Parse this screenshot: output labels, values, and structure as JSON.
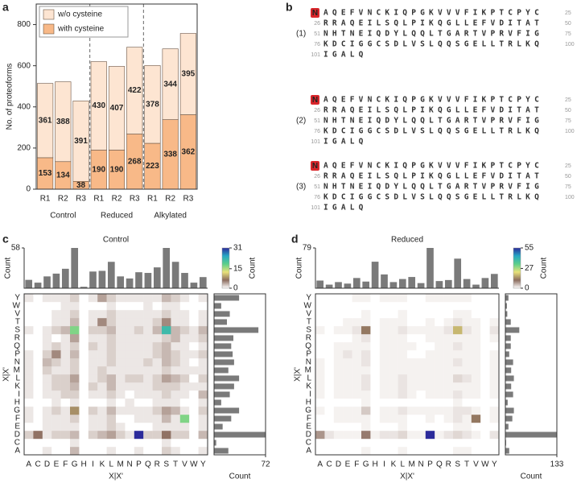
{
  "panel_labels": [
    "a",
    "b",
    "c",
    "d"
  ],
  "chart_data": [
    {
      "type": "bar",
      "stacked": true,
      "ylabel": "No. of proteoforms",
      "categories": [
        "R1",
        "R2",
        "R3",
        "R1",
        "R2",
        "R3",
        "R1",
        "R2",
        "R3"
      ],
      "groups": [
        "Control",
        "Reduced",
        "Alkylated"
      ],
      "series": [
        {
          "name": "with cysteine",
          "color": "#f8b988",
          "values": [
            153,
            134,
            38,
            190,
            190,
            268,
            223,
            338,
            362
          ]
        },
        {
          "name": "w/o cysteine",
          "color": "#fde5d2",
          "values": [
            361,
            388,
            391,
            430,
            407,
            422,
            378,
            344,
            395
          ]
        }
      ],
      "ylim": [
        0,
        900
      ],
      "yticks": [
        0,
        200,
        400,
        600,
        800
      ],
      "legend": "top-left"
    },
    {
      "type": "heatmap",
      "title": "Control",
      "xlabel": "X|X'",
      "ylabel": "X|X'",
      "x_categories": [
        "A",
        "C",
        "D",
        "E",
        "F",
        "G",
        "H",
        "I",
        "K",
        "L",
        "M",
        "N",
        "P",
        "Q",
        "R",
        "S",
        "T",
        "V",
        "W",
        "Y"
      ],
      "y_categories": [
        "A",
        "C",
        "D",
        "E",
        "F",
        "G",
        "H",
        "I",
        "K",
        "L",
        "M",
        "N",
        "P",
        "Q",
        "R",
        "S",
        "T",
        "V",
        "W",
        "Y"
      ],
      "matrix": [
        [
          0,
          0,
          1,
          0,
          0,
          3,
          0,
          0,
          0,
          1,
          0,
          0,
          1,
          0,
          0,
          2,
          1,
          0,
          0,
          1
        ],
        [
          0,
          0,
          0,
          0,
          0,
          1,
          0,
          0,
          0,
          0,
          0,
          0,
          0,
          0,
          0,
          1,
          0,
          0,
          0,
          0
        ],
        [
          2,
          6,
          1,
          2,
          2,
          3,
          0,
          2,
          3,
          4,
          2,
          1,
          31,
          2,
          2,
          6,
          2,
          2,
          0,
          3
        ],
        [
          0,
          0,
          1,
          1,
          1,
          1,
          0,
          1,
          1,
          2,
          1,
          0,
          0,
          0,
          1,
          1,
          1,
          1,
          0,
          1
        ],
        [
          1,
          0,
          1,
          1,
          1,
          2,
          0,
          1,
          1,
          2,
          0,
          0,
          1,
          1,
          1,
          3,
          1,
          17,
          0,
          1
        ],
        [
          1,
          0,
          1,
          2,
          1,
          8,
          0,
          2,
          1,
          3,
          1,
          1,
          1,
          1,
          2,
          4,
          3,
          1,
          0,
          2
        ],
        [
          0,
          0,
          0,
          1,
          0,
          1,
          0,
          0,
          0,
          1,
          0,
          1,
          0,
          0,
          1,
          1,
          1,
          0,
          0,
          1
        ],
        [
          1,
          0,
          1,
          1,
          2,
          2,
          0,
          1,
          1,
          2,
          1,
          0,
          1,
          1,
          1,
          2,
          1,
          1,
          0,
          3
        ],
        [
          1,
          0,
          1,
          2,
          2,
          3,
          0,
          2,
          1,
          3,
          1,
          1,
          1,
          1,
          2,
          2,
          2,
          1,
          1,
          1
        ],
        [
          1,
          0,
          1,
          2,
          2,
          4,
          0,
          1,
          2,
          3,
          1,
          2,
          2,
          1,
          2,
          4,
          3,
          2,
          0,
          2
        ],
        [
          1,
          0,
          2,
          1,
          1,
          2,
          0,
          1,
          2,
          1,
          1,
          1,
          1,
          1,
          1,
          2,
          1,
          1,
          1,
          1
        ],
        [
          1,
          0,
          3,
          2,
          1,
          2,
          0,
          1,
          1,
          2,
          1,
          1,
          1,
          2,
          1,
          3,
          2,
          1,
          0,
          1
        ],
        [
          1,
          0,
          2,
          5,
          1,
          3,
          0,
          1,
          1,
          2,
          1,
          1,
          1,
          1,
          2,
          3,
          2,
          1,
          1,
          2
        ],
        [
          0,
          0,
          1,
          2,
          1,
          2,
          0,
          2,
          1,
          2,
          1,
          1,
          1,
          1,
          2,
          3,
          1,
          1,
          0,
          1
        ],
        [
          0,
          0,
          1,
          0,
          1,
          4,
          0,
          1,
          1,
          2,
          1,
          1,
          1,
          1,
          1,
          2,
          3,
          1,
          1,
          2
        ],
        [
          1,
          0,
          1,
          2,
          3,
          17,
          0,
          2,
          2,
          3,
          1,
          1,
          2,
          1,
          3,
          22,
          3,
          2,
          1,
          3
        ],
        [
          0,
          0,
          0,
          1,
          1,
          3,
          0,
          1,
          5,
          2,
          1,
          1,
          1,
          1,
          2,
          5,
          1,
          1,
          0,
          1
        ],
        [
          0,
          0,
          0,
          1,
          1,
          2,
          0,
          1,
          1,
          2,
          1,
          1,
          1,
          1,
          1,
          2,
          1,
          1,
          0,
          1
        ],
        [
          0,
          0,
          0,
          0,
          1,
          1,
          0,
          0,
          0,
          1,
          0,
          0,
          0,
          1,
          0,
          1,
          1,
          0,
          0,
          0
        ],
        [
          1,
          0,
          1,
          1,
          1,
          2,
          0,
          1,
          4,
          2,
          1,
          1,
          1,
          1,
          1,
          3,
          2,
          1,
          0,
          1
        ]
      ],
      "clim": [
        0,
        31
      ],
      "cticks": [
        0,
        15,
        31
      ],
      "colorbar_label": "Count",
      "colors": [
        "#ffffff",
        "#8c6d5f",
        "#e9e27a",
        "#5ccf8a",
        "#27a8c4",
        "#2b2a9a"
      ],
      "top_bars": {
        "ylabel": "Count",
        "color": "#7a7a7a",
        "ylim": [
          0,
          58
        ],
        "yticks": [
          58
        ],
        "values": [
          12,
          8,
          17,
          21,
          28,
          58,
          2,
          24,
          25,
          38,
          17,
          14,
          23,
          22,
          30,
          58,
          38,
          22,
          8,
          16
        ]
      },
      "right_bars": {
        "xlabel": "Count",
        "color": "#7a7a7a",
        "xlim": [
          0,
          72
        ],
        "xticks": [
          72
        ],
        "values": [
          20,
          3,
          72,
          12,
          24,
          35,
          10,
          22,
          28,
          35,
          20,
          28,
          26,
          24,
          27,
          62,
          18,
          22,
          10,
          35
        ]
      }
    },
    {
      "type": "heatmap",
      "title": "Reduced",
      "xlabel": "X|X'",
      "ylabel": "X|X'",
      "x_categories": [
        "A",
        "C",
        "D",
        "E",
        "F",
        "G",
        "H",
        "I",
        "K",
        "L",
        "M",
        "N",
        "P",
        "Q",
        "R",
        "S",
        "T",
        "V",
        "W",
        "Y"
      ],
      "y_categories": [
        "A",
        "C",
        "D",
        "E",
        "F",
        "G",
        "H",
        "I",
        "K",
        "L",
        "M",
        "N",
        "P",
        "Q",
        "R",
        "S",
        "T",
        "V",
        "W",
        "Y"
      ],
      "matrix": [
        [
          0,
          0,
          0,
          0,
          0,
          1,
          0,
          0,
          0,
          1,
          0,
          0,
          0,
          0,
          0,
          1,
          1,
          0,
          0,
          0
        ],
        [
          0,
          0,
          0,
          0,
          0,
          0,
          0,
          0,
          0,
          0,
          0,
          0,
          0,
          0,
          0,
          0,
          0,
          0,
          0,
          0
        ],
        [
          8,
          2,
          1,
          1,
          1,
          10,
          1,
          2,
          2,
          3,
          1,
          1,
          55,
          1,
          2,
          3,
          2,
          1,
          0,
          2
        ],
        [
          0,
          0,
          0,
          0,
          0,
          1,
          0,
          0,
          0,
          1,
          0,
          0,
          0,
          0,
          0,
          1,
          1,
          0,
          0,
          0
        ],
        [
          0,
          0,
          1,
          1,
          1,
          1,
          0,
          1,
          1,
          1,
          0,
          0,
          1,
          0,
          1,
          2,
          1,
          12,
          0,
          1
        ],
        [
          1,
          0,
          1,
          1,
          1,
          4,
          0,
          1,
          1,
          2,
          1,
          1,
          1,
          1,
          1,
          2,
          2,
          1,
          0,
          1
        ],
        [
          0,
          0,
          0,
          0,
          0,
          1,
          0,
          0,
          0,
          0,
          0,
          0,
          0,
          0,
          0,
          1,
          0,
          0,
          0,
          0
        ],
        [
          1,
          0,
          1,
          1,
          1,
          1,
          0,
          1,
          1,
          2,
          1,
          0,
          1,
          1,
          1,
          2,
          1,
          1,
          0,
          1
        ],
        [
          1,
          0,
          1,
          1,
          1,
          2,
          0,
          1,
          1,
          2,
          1,
          1,
          1,
          1,
          1,
          1,
          1,
          1,
          0,
          1
        ],
        [
          1,
          0,
          1,
          1,
          1,
          2,
          0,
          1,
          1,
          2,
          1,
          1,
          1,
          1,
          1,
          3,
          2,
          1,
          0,
          1
        ],
        [
          1,
          0,
          1,
          1,
          1,
          1,
          0,
          1,
          1,
          1,
          1,
          1,
          1,
          1,
          1,
          1,
          1,
          1,
          0,
          1
        ],
        [
          1,
          0,
          1,
          1,
          1,
          2,
          0,
          1,
          1,
          1,
          1,
          1,
          1,
          1,
          1,
          2,
          1,
          1,
          0,
          1
        ],
        [
          0,
          0,
          1,
          2,
          1,
          2,
          0,
          1,
          1,
          1,
          0,
          0,
          1,
          1,
          1,
          1,
          1,
          1,
          0,
          1
        ],
        [
          0,
          0,
          1,
          1,
          1,
          1,
          0,
          1,
          1,
          1,
          1,
          0,
          0,
          1,
          1,
          2,
          1,
          1,
          0,
          0
        ],
        [
          0,
          0,
          0,
          0,
          1,
          2,
          0,
          1,
          1,
          1,
          0,
          0,
          1,
          1,
          1,
          1,
          1,
          1,
          0,
          1
        ],
        [
          1,
          0,
          1,
          1,
          2,
          12,
          0,
          1,
          1,
          2,
          1,
          1,
          1,
          1,
          2,
          18,
          2,
          1,
          0,
          2
        ],
        [
          0,
          0,
          0,
          1,
          1,
          1,
          0,
          1,
          1,
          1,
          0,
          0,
          1,
          0,
          1,
          2,
          1,
          1,
          0,
          1
        ],
        [
          0,
          0,
          0,
          0,
          0,
          1,
          0,
          0,
          0,
          1,
          0,
          0,
          0,
          0,
          0,
          1,
          1,
          0,
          0,
          0
        ],
        [
          0,
          0,
          0,
          0,
          0,
          0,
          0,
          0,
          0,
          0,
          0,
          0,
          0,
          0,
          0,
          0,
          0,
          0,
          0,
          0
        ],
        [
          0,
          0,
          0,
          0,
          1,
          1,
          0,
          1,
          1,
          1,
          0,
          0,
          1,
          1,
          1,
          1,
          1,
          0,
          0,
          0
        ]
      ],
      "clim": [
        0,
        55
      ],
      "cticks": [
        0,
        27,
        55
      ],
      "colorbar_label": "Count",
      "colors": [
        "#ffffff",
        "#8c6d5f",
        "#e9e27a",
        "#5ccf8a",
        "#27a8c4",
        "#2b2a9a"
      ],
      "top_bars": {
        "ylabel": "Count",
        "color": "#7a7a7a",
        "ylim": [
          0,
          79
        ],
        "yticks": [
          79
        ],
        "values": [
          15,
          7,
          12,
          9,
          20,
          13,
          52,
          27,
          12,
          18,
          22,
          10,
          79,
          14,
          16,
          58,
          18,
          7,
          20,
          28
        ]
      },
      "right_bars": {
        "xlabel": "Count",
        "color": "#7a7a7a",
        "xlim": [
          0,
          133
        ],
        "xticks": [
          133
        ],
        "values": [
          10,
          2,
          133,
          8,
          18,
          22,
          6,
          20,
          15,
          22,
          15,
          20,
          10,
          14,
          14,
          36,
          14,
          5,
          4,
          8
        ]
      }
    }
  ],
  "sequences": {
    "n_terminus": "N",
    "blocks": [
      {
        "label": "(1)",
        "lines": [
          {
            "residues": "AQEFVNCKIQPGKVVVFIKPTCPYC",
            "end": 25
          },
          {
            "start": 26,
            "residues": "RRAQEILSQLPIKQGLLEFVDITAT",
            "end": 50
          },
          {
            "start": 51,
            "residues": "NHTNEIQDYLQQLTGARTVPRVFIG",
            "end": 75
          },
          {
            "start": 76,
            "residues": "KDCIGGCSDLVSLQQSGELLTRLKQ",
            "end": 100
          },
          {
            "start": 101,
            "residues": "IGALQ"
          }
        ]
      },
      {
        "label": "(2)",
        "lines": [
          {
            "residues": "AQEFVNCKIQPGKVVVFIKPTCPYC",
            "end": 25
          },
          {
            "start": 26,
            "residues": "RRAQEILSQLPIKQGLLEFVDITAT",
            "end": 50
          },
          {
            "start": 51,
            "residues": "NHTNEIQDYLQQLTGARTVPRVFIG",
            "end": 75
          },
          {
            "start": 76,
            "residues": "KDCIGGCSDLVSLQQSGELLTRLKQ",
            "end": 100
          },
          {
            "start": 101,
            "residues": "IGALQ"
          }
        ]
      },
      {
        "label": "(3)",
        "lines": [
          {
            "residues": "AQEFVNCKIQPGKVVVFIKPTCPYC",
            "end": 25
          },
          {
            "start": 26,
            "residues": "RRAQEILSQLPIKQGLLEFVDITAT",
            "end": 50
          },
          {
            "start": 51,
            "residues": "NHTNEIQDYLQQLTGARTVPRVFIG",
            "end": 75
          },
          {
            "start": 76,
            "residues": "KDCIGGCSDLVSLQQSGELLTRLKQ",
            "end": 100
          },
          {
            "start": 101,
            "residues": "IGALQ"
          }
        ]
      }
    ]
  }
}
